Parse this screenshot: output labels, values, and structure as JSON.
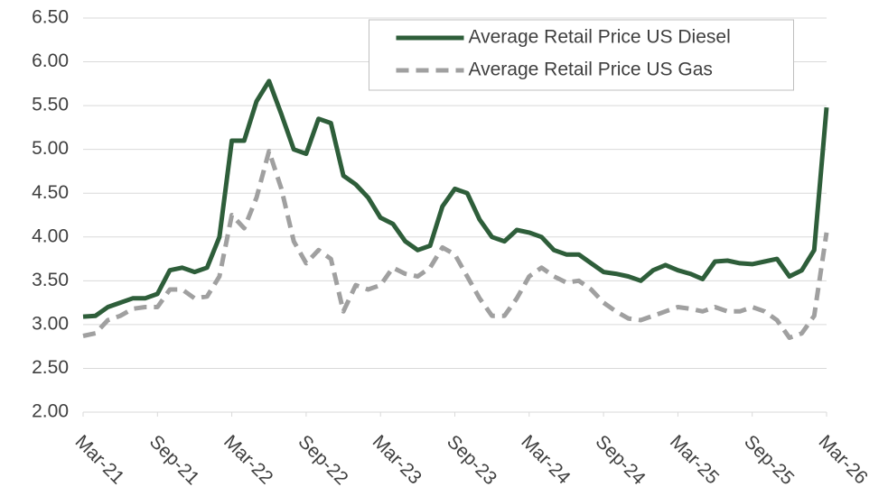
{
  "chart_data": {
    "type": "line",
    "categories": [
      "Mar-21",
      null,
      null,
      null,
      null,
      null,
      "Sep-21",
      null,
      null,
      null,
      null,
      null,
      "Mar-22",
      null,
      null,
      null,
      null,
      null,
      "Sep-22",
      null,
      null,
      null,
      null,
      null,
      "Mar-23",
      null,
      null,
      null,
      null,
      null,
      "Sep-23",
      null,
      null,
      null,
      null,
      null,
      "Mar-24",
      null,
      null,
      null,
      null,
      null,
      "Sep-24",
      null,
      null,
      null,
      null,
      null,
      "Mar-25",
      null,
      null,
      null,
      null,
      null,
      "Sep-25",
      null,
      null,
      null,
      null,
      null,
      "Mar-26"
    ],
    "series": [
      {
        "name": "Average Retail Price US Diesel",
        "color": "#2e5e3a",
        "line_style": "solid",
        "values": [
          3.09,
          3.1,
          3.2,
          3.25,
          3.3,
          3.3,
          3.35,
          3.62,
          3.65,
          3.6,
          3.65,
          4.0,
          5.1,
          5.1,
          5.55,
          5.78,
          5.4,
          5.0,
          4.95,
          5.35,
          5.3,
          4.7,
          4.6,
          4.45,
          4.22,
          4.15,
          3.95,
          3.85,
          3.9,
          4.35,
          4.55,
          4.5,
          4.2,
          4.0,
          3.95,
          4.08,
          4.05,
          4.0,
          3.85,
          3.8,
          3.8,
          3.7,
          3.6,
          3.58,
          3.55,
          3.5,
          3.62,
          3.68,
          3.62,
          3.58,
          3.52,
          3.72,
          3.73,
          3.7,
          3.69,
          3.72,
          3.75,
          3.55,
          3.62,
          3.85,
          5.48
        ]
      },
      {
        "name": "Average Retail Price US Gas",
        "color": "#a0a0a0",
        "line_style": "dashed",
        "values": [
          2.87,
          2.9,
          3.05,
          3.1,
          3.18,
          3.2,
          3.2,
          3.4,
          3.4,
          3.3,
          3.32,
          3.55,
          4.25,
          4.1,
          4.45,
          4.98,
          4.55,
          3.95,
          3.7,
          3.85,
          3.75,
          3.15,
          3.45,
          3.4,
          3.45,
          3.65,
          3.58,
          3.55,
          3.65,
          3.88,
          3.8,
          3.55,
          3.3,
          3.1,
          3.1,
          3.3,
          3.55,
          3.65,
          3.55,
          3.48,
          3.5,
          3.4,
          3.25,
          3.15,
          3.07,
          3.05,
          3.1,
          3.15,
          3.2,
          3.18,
          3.15,
          3.2,
          3.15,
          3.15,
          3.2,
          3.15,
          3.05,
          2.85,
          2.9,
          3.1,
          4.05
        ]
      }
    ],
    "ylim": [
      2,
      6.5
    ],
    "yticks": [
      {
        "value": 2,
        "label": "2.00"
      },
      {
        "value": 2.5,
        "label": "2.50"
      },
      {
        "value": 3,
        "label": "3.00"
      },
      {
        "value": 3.5,
        "label": "3.50"
      },
      {
        "value": 4,
        "label": "4.00"
      },
      {
        "value": 4.5,
        "label": "4.50"
      },
      {
        "value": 5,
        "label": "5.00"
      },
      {
        "value": 5.5,
        "label": "5.50"
      },
      {
        "value": 6,
        "label": "6.00"
      },
      {
        "value": 6.5,
        "label": "6.50"
      }
    ],
    "grid": true,
    "legend": "upper center"
  }
}
